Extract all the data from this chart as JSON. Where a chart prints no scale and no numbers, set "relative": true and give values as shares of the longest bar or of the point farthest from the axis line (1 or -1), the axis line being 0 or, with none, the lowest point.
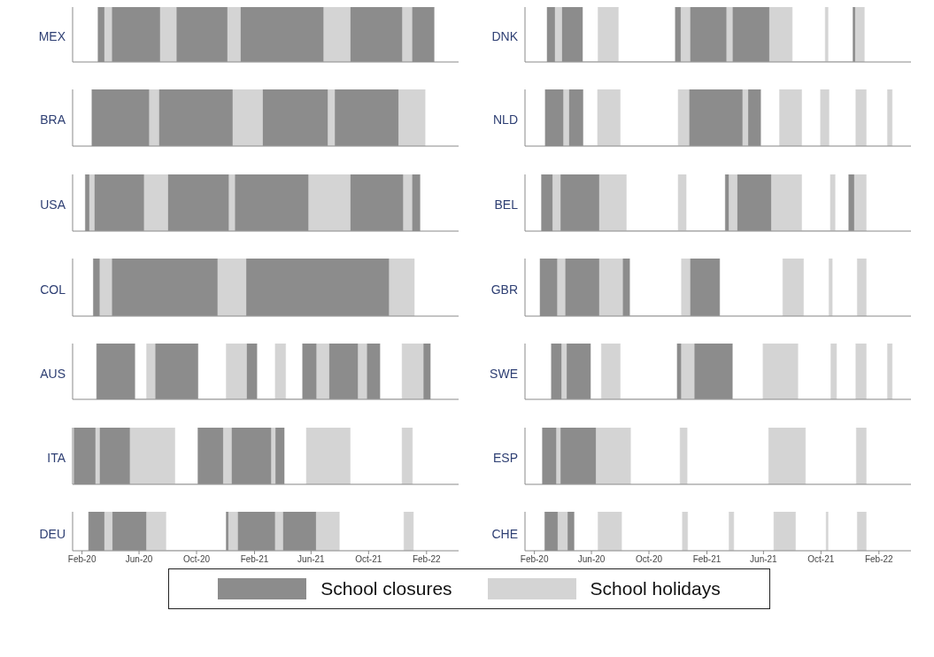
{
  "chart_data": [
    {
      "type": "area",
      "relative": true,
      "ylabel": "MEX",
      "tick_labels": false,
      "xlim": [
        "2020-01-12",
        "2022-04-10"
      ],
      "series": [
        {
          "color": "#8c8c8c",
          "x": [
            "2020-03-06",
            "2020-03-06",
            "2020-03-20",
            "2020-03-20",
            "2020-04-04",
            "2020-04-04",
            "2020-07-16",
            "2020-07-16",
            "2020-08-19",
            "2020-08-19",
            "2020-12-06",
            "2020-12-06",
            "2021-01-02",
            "2021-01-02",
            "2021-06-28",
            "2021-06-28",
            "2021-08-23",
            "2021-08-23",
            "2021-12-12",
            "2021-12-12",
            "2022-01-01",
            "2022-01-01",
            "2022-02-17",
            "2022-02-17"
          ],
          "values": [
            0,
            1,
            1,
            0,
            0,
            1,
            1,
            0,
            0,
            1,
            1,
            0,
            0,
            1,
            1,
            0,
            0,
            1,
            1,
            0,
            0,
            1,
            1,
            0
          ]
        },
        {
          "color": "#d4d4d4",
          "x": [
            "2020-03-20",
            "2020-03-20",
            "2020-04-04",
            "2020-04-04",
            "2020-07-16",
            "2020-07-16",
            "2020-08-19",
            "2020-08-19",
            "2020-12-06",
            "2020-12-06",
            "2021-01-02",
            "2021-01-02",
            "2021-06-28",
            "2021-06-28",
            "2021-08-23",
            "2021-08-23",
            "2021-12-12",
            "2021-12-12",
            "2022-01-01",
            "2022-01-01"
          ],
          "values": [
            0,
            1,
            1,
            0,
            0,
            1,
            1,
            0,
            0,
            1,
            1,
            0,
            0,
            1,
            1,
            0,
            0,
            1,
            1,
            0
          ]
        }
      ]
    },
    {
      "type": "area",
      "relative": true,
      "ylabel": "DNK",
      "tick_labels": false,
      "xlim": [
        "2020-01-12",
        "2022-04-10"
      ],
      "series": [
        {
          "color": "#8c8c8c",
          "x": [
            "2020-02-28",
            "2020-02-28",
            "2020-03-16",
            "2020-03-16",
            "2020-03-30",
            "2020-03-30",
            "2020-05-13",
            "2020-05-13",
            "2020-11-26",
            "2020-11-26",
            "2020-12-08",
            "2020-12-08",
            "2020-12-27",
            "2020-12-27",
            "2021-03-15",
            "2021-03-15",
            "2021-03-27",
            "2021-03-27",
            "2021-06-14",
            "2021-06-14",
            "2021-12-08",
            "2021-12-08",
            "2021-12-13",
            "2021-12-13"
          ],
          "values": [
            0,
            1,
            1,
            0,
            0,
            1,
            1,
            0,
            0,
            1,
            1,
            0,
            0,
            1,
            1,
            0,
            0,
            1,
            1,
            0,
            0,
            1,
            1,
            0
          ]
        },
        {
          "color": "#d4d4d4",
          "x": [
            "2020-03-16",
            "2020-03-16",
            "2020-03-30",
            "2020-03-30",
            "2020-06-15",
            "2020-06-15",
            "2020-07-28",
            "2020-07-28",
            "2020-12-08",
            "2020-12-08",
            "2020-12-27",
            "2020-12-27",
            "2021-03-15",
            "2021-03-15",
            "2021-03-27",
            "2021-03-27",
            "2021-06-14",
            "2021-06-14",
            "2021-08-01",
            "2021-08-01",
            "2021-10-10",
            "2021-10-10",
            "2021-10-16",
            "2021-10-16",
            "2021-12-13",
            "2021-12-13",
            "2022-01-01",
            "2022-01-01"
          ],
          "values": [
            0,
            1,
            1,
            0,
            0,
            1,
            1,
            0,
            0,
            1,
            1,
            0,
            0,
            1,
            1,
            0,
            0,
            1,
            1,
            0,
            0,
            1,
            1,
            0,
            0,
            1,
            1,
            0
          ]
        }
      ]
    },
    {
      "type": "area",
      "relative": true,
      "ylabel": "BRA",
      "tick_labels": false,
      "xlim": [
        "2020-01-12",
        "2022-04-10"
      ],
      "series": [
        {
          "color": "#8c8c8c",
          "x": [
            "2020-02-22",
            "2020-02-22",
            "2020-06-23",
            "2020-06-23",
            "2020-07-13",
            "2020-07-13",
            "2020-12-17",
            "2020-12-17",
            "2021-02-18",
            "2021-02-18",
            "2021-07-07",
            "2021-07-07",
            "2021-07-21",
            "2021-07-21",
            "2021-12-04",
            "2021-12-04"
          ],
          "values": [
            0,
            1,
            1,
            0,
            0,
            1,
            1,
            0,
            0,
            1,
            1,
            0,
            0,
            1,
            1,
            0
          ]
        },
        {
          "color": "#d4d4d4",
          "x": [
            "2020-06-23",
            "2020-06-23",
            "2020-07-13",
            "2020-07-13",
            "2020-12-17",
            "2020-12-17",
            "2021-02-18",
            "2021-02-18",
            "2021-07-07",
            "2021-07-07",
            "2021-07-21",
            "2021-07-21",
            "2021-12-04",
            "2021-12-04",
            "2022-01-29",
            "2022-01-29"
          ],
          "values": [
            0,
            1,
            1,
            0,
            0,
            1,
            1,
            0,
            0,
            1,
            1,
            0,
            0,
            1,
            1,
            0
          ]
        }
      ]
    },
    {
      "type": "area",
      "relative": true,
      "ylabel": "NLD",
      "tick_labels": false,
      "xlim": [
        "2020-01-12",
        "2022-04-10"
      ],
      "series": [
        {
          "color": "#8c8c8c",
          "x": [
            "2020-02-24",
            "2020-02-24",
            "2020-04-03",
            "2020-04-03",
            "2020-04-14",
            "2020-04-14",
            "2020-05-14",
            "2020-05-14",
            "2020-12-25",
            "2020-12-25",
            "2021-04-18",
            "2021-04-18",
            "2021-04-29",
            "2021-04-29",
            "2021-05-26",
            "2021-05-26"
          ],
          "values": [
            0,
            1,
            1,
            0,
            0,
            1,
            1,
            0,
            0,
            1,
            1,
            0,
            0,
            1,
            1,
            0
          ]
        },
        {
          "color": "#d4d4d4",
          "x": [
            "2020-04-03",
            "2020-04-03",
            "2020-04-14",
            "2020-04-14",
            "2020-06-14",
            "2020-06-14",
            "2020-08-01",
            "2020-08-01",
            "2020-12-02",
            "2020-12-02",
            "2020-12-25",
            "2020-12-25",
            "2021-04-18",
            "2021-04-18",
            "2021-04-29",
            "2021-04-29",
            "2021-07-05",
            "2021-07-05",
            "2021-08-21",
            "2021-08-21",
            "2021-09-30",
            "2021-09-30",
            "2021-10-18",
            "2021-10-18",
            "2021-12-14",
            "2021-12-14",
            "2022-01-05",
            "2022-01-05",
            "2022-02-19",
            "2022-02-19",
            "2022-03-01",
            "2022-03-01"
          ],
          "values": [
            0,
            1,
            1,
            0,
            0,
            1,
            1,
            0,
            0,
            1,
            1,
            0,
            0,
            1,
            1,
            0,
            0,
            1,
            1,
            0,
            0,
            1,
            1,
            0,
            0,
            1,
            1,
            0,
            0,
            1,
            1,
            0
          ]
        }
      ]
    },
    {
      "type": "area",
      "relative": true,
      "ylabel": "USA",
      "tick_labels": false,
      "xlim": [
        "2020-01-12",
        "2022-04-10"
      ],
      "series": [
        {
          "color": "#8c8c8c",
          "x": [
            "2020-02-08",
            "2020-02-08",
            "2020-02-17",
            "2020-02-17",
            "2020-02-27",
            "2020-02-27",
            "2020-06-12",
            "2020-06-12",
            "2020-08-01",
            "2020-08-01",
            "2020-12-09",
            "2020-12-09",
            "2020-12-21",
            "2020-12-21",
            "2021-05-27",
            "2021-05-27",
            "2021-08-23",
            "2021-08-23",
            "2021-12-14",
            "2021-12-14",
            "2022-01-01",
            "2022-01-01",
            "2022-01-18",
            "2022-01-18"
          ],
          "values": [
            0,
            1,
            1,
            0,
            0,
            1,
            1,
            0,
            0,
            1,
            1,
            0,
            0,
            1,
            1,
            0,
            0,
            1,
            1,
            0,
            0,
            1,
            1,
            0
          ]
        },
        {
          "color": "#d4d4d4",
          "x": [
            "2020-02-17",
            "2020-02-17",
            "2020-02-27",
            "2020-02-27",
            "2020-06-12",
            "2020-06-12",
            "2020-08-01",
            "2020-08-01",
            "2020-12-09",
            "2020-12-09",
            "2020-12-21",
            "2020-12-21",
            "2021-05-27",
            "2021-05-27",
            "2021-08-23",
            "2021-08-23",
            "2021-12-14",
            "2021-12-14",
            "2022-01-01",
            "2022-01-01"
          ],
          "values": [
            0,
            1,
            1,
            0,
            0,
            1,
            1,
            0,
            0,
            1,
            1,
            0,
            0,
            1,
            1,
            0,
            0,
            1,
            1,
            0
          ]
        }
      ]
    },
    {
      "type": "area",
      "relative": true,
      "ylabel": "BEL",
      "tick_labels": false,
      "xlim": [
        "2020-01-12",
        "2022-04-10"
      ],
      "series": [
        {
          "color": "#8c8c8c",
          "x": [
            "2020-02-16",
            "2020-02-16",
            "2020-03-11",
            "2020-03-11",
            "2020-03-27",
            "2020-03-27",
            "2020-06-18",
            "2020-06-18",
            "2021-03-12",
            "2021-03-12",
            "2021-03-20",
            "2021-03-20",
            "2021-04-06",
            "2021-04-06",
            "2021-06-18",
            "2021-06-18",
            "2021-11-29",
            "2021-11-29",
            "2021-12-11",
            "2021-12-11"
          ],
          "values": [
            0,
            1,
            1,
            0,
            0,
            1,
            1,
            0,
            0,
            1,
            1,
            0,
            0,
            1,
            1,
            0,
            0,
            1,
            1,
            0
          ]
        },
        {
          "color": "#d4d4d4",
          "x": [
            "2020-03-11",
            "2020-03-11",
            "2020-03-27",
            "2020-03-27",
            "2020-06-18",
            "2020-06-18",
            "2020-08-14",
            "2020-08-14",
            "2020-12-02",
            "2020-12-02",
            "2020-12-19",
            "2020-12-19",
            "2021-03-20",
            "2021-03-20",
            "2021-04-06",
            "2021-04-06",
            "2021-06-18",
            "2021-06-18",
            "2021-08-21",
            "2021-08-21",
            "2021-10-21",
            "2021-10-21",
            "2021-10-31",
            "2021-10-31",
            "2021-12-11",
            "2021-12-11",
            "2022-01-05",
            "2022-01-05"
          ],
          "values": [
            0,
            1,
            1,
            0,
            0,
            1,
            1,
            0,
            0,
            1,
            1,
            0,
            0,
            1,
            1,
            0,
            0,
            1,
            1,
            0,
            0,
            1,
            1,
            0,
            0,
            1,
            1,
            0
          ]
        }
      ]
    },
    {
      "type": "area",
      "relative": true,
      "ylabel": "COL",
      "tick_labels": false,
      "xlim": [
        "2020-01-12",
        "2022-04-10"
      ],
      "series": [
        {
          "color": "#8c8c8c",
          "x": [
            "2020-02-25",
            "2020-02-25",
            "2020-03-10",
            "2020-03-10",
            "2020-04-04",
            "2020-04-04",
            "2020-11-15",
            "2020-11-15",
            "2021-01-14",
            "2021-01-14",
            "2021-11-14",
            "2021-11-14"
          ],
          "values": [
            0,
            1,
            1,
            0,
            0,
            1,
            1,
            0,
            0,
            1,
            1,
            0
          ]
        },
        {
          "color": "#d4d4d4",
          "x": [
            "2020-03-10",
            "2020-03-10",
            "2020-04-04",
            "2020-04-04",
            "2020-11-15",
            "2020-11-15",
            "2021-01-14",
            "2021-01-14",
            "2021-11-14",
            "2021-11-14",
            "2022-01-06",
            "2022-01-06"
          ],
          "values": [
            0,
            1,
            1,
            0,
            0,
            1,
            1,
            0,
            0,
            1,
            1,
            0
          ]
        }
      ]
    },
    {
      "type": "area",
      "relative": true,
      "ylabel": "GBR",
      "tick_labels": false,
      "xlim": [
        "2020-01-12",
        "2022-04-10"
      ],
      "series": [
        {
          "color": "#8c8c8c",
          "x": [
            "2020-02-13",
            "2020-02-13",
            "2020-03-21",
            "2020-03-21",
            "2020-04-06",
            "2020-04-06",
            "2020-06-18",
            "2020-06-18",
            "2020-08-06",
            "2020-08-06",
            "2020-08-21",
            "2020-08-21",
            "2020-12-27",
            "2020-12-27",
            "2021-02-28",
            "2021-02-28"
          ],
          "values": [
            0,
            1,
            1,
            0,
            0,
            1,
            1,
            0,
            0,
            1,
            1,
            0,
            0,
            1,
            1,
            0
          ]
        },
        {
          "color": "#d4d4d4",
          "x": [
            "2020-03-21",
            "2020-03-21",
            "2020-04-06",
            "2020-04-06",
            "2020-06-18",
            "2020-06-18",
            "2020-08-06",
            "2020-08-06",
            "2020-12-09",
            "2020-12-09",
            "2020-12-27",
            "2020-12-27",
            "2021-07-12",
            "2021-07-12",
            "2021-08-25",
            "2021-08-25",
            "2021-10-18",
            "2021-10-18",
            "2021-10-25",
            "2021-10-25",
            "2021-12-17",
            "2021-12-17",
            "2022-01-05",
            "2022-01-05"
          ],
          "values": [
            0,
            1,
            1,
            0,
            0,
            1,
            1,
            0,
            0,
            1,
            1,
            0,
            0,
            1,
            1,
            0,
            0,
            1,
            1,
            0,
            0,
            1,
            1,
            0
          ]
        }
      ]
    },
    {
      "type": "area",
      "relative": true,
      "ylabel": "AUS",
      "tick_labels": false,
      "xlim": [
        "2020-01-12",
        "2022-04-10"
      ],
      "series": [
        {
          "color": "#8c8c8c",
          "x": [
            "2020-03-03",
            "2020-03-03",
            "2020-05-23",
            "2020-05-23",
            "2020-07-05",
            "2020-07-05",
            "2020-10-04",
            "2020-10-04",
            "2021-01-15",
            "2021-01-15",
            "2021-02-06",
            "2021-02-06",
            "2021-05-14",
            "2021-05-14",
            "2021-06-13",
            "2021-06-13",
            "2021-07-09",
            "2021-07-09",
            "2021-09-09",
            "2021-09-09",
            "2021-09-27",
            "2021-09-27",
            "2021-10-25",
            "2021-10-25",
            "2022-01-25",
            "2022-01-25",
            "2022-02-09",
            "2022-02-09"
          ],
          "values": [
            0,
            1,
            1,
            0,
            0,
            1,
            1,
            0,
            0,
            1,
            1,
            0,
            0,
            1,
            1,
            0,
            0,
            1,
            1,
            0,
            0,
            1,
            1,
            0,
            0,
            1,
            1,
            0
          ]
        },
        {
          "color": "#d4d4d4",
          "x": [
            "2020-06-17",
            "2020-06-17",
            "2020-07-05",
            "2020-07-05",
            "2020-12-03",
            "2020-12-03",
            "2021-01-15",
            "2021-01-15",
            "2021-03-17",
            "2021-03-17",
            "2021-04-08",
            "2021-04-08",
            "2021-06-13",
            "2021-06-13",
            "2021-07-09",
            "2021-07-09",
            "2021-09-09",
            "2021-09-09",
            "2021-09-27",
            "2021-09-27",
            "2021-12-11",
            "2021-12-11",
            "2022-01-25",
            "2022-01-25"
          ],
          "values": [
            0,
            1,
            1,
            0,
            0,
            1,
            1,
            0,
            0,
            1,
            1,
            0,
            0,
            1,
            1,
            0,
            0,
            1,
            1,
            0,
            0,
            1,
            1,
            0
          ]
        }
      ]
    },
    {
      "type": "area",
      "relative": true,
      "ylabel": "SWE",
      "tick_labels": false,
      "xlim": [
        "2020-01-12",
        "2022-04-10"
      ],
      "series": [
        {
          "color": "#8c8c8c",
          "x": [
            "2020-03-08",
            "2020-03-08",
            "2020-03-30",
            "2020-03-30",
            "2020-04-09",
            "2020-04-09",
            "2020-05-30",
            "2020-05-30",
            "2020-11-30",
            "2020-11-30",
            "2020-12-09",
            "2020-12-09",
            "2021-01-05",
            "2021-01-05",
            "2021-03-27",
            "2021-03-27"
          ],
          "values": [
            0,
            1,
            1,
            0,
            0,
            1,
            1,
            0,
            0,
            1,
            1,
            0,
            0,
            1,
            1,
            0
          ]
        },
        {
          "color": "#d4d4d4",
          "x": [
            "2020-03-30",
            "2020-03-30",
            "2020-04-09",
            "2020-04-09",
            "2020-06-22",
            "2020-06-22",
            "2020-08-01",
            "2020-08-01",
            "2020-12-09",
            "2020-12-09",
            "2021-01-05",
            "2021-01-05",
            "2021-05-31",
            "2021-05-31",
            "2021-08-13",
            "2021-08-13",
            "2021-10-22",
            "2021-10-22",
            "2021-11-03",
            "2021-11-03",
            "2021-12-14",
            "2021-12-14",
            "2022-01-05",
            "2022-01-05",
            "2022-02-19",
            "2022-02-19",
            "2022-03-01",
            "2022-03-01"
          ],
          "values": [
            0,
            1,
            1,
            0,
            0,
            1,
            1,
            0,
            0,
            1,
            1,
            0,
            0,
            1,
            1,
            0,
            0,
            1,
            1,
            0,
            0,
            1,
            1,
            0,
            0,
            1,
            1,
            0
          ]
        }
      ]
    },
    {
      "type": "area",
      "relative": true,
      "ylabel": "ITA",
      "tick_labels": false,
      "xlim": [
        "2020-01-12",
        "2022-04-10"
      ],
      "series": [
        {
          "color": "#8c8c8c",
          "x": [
            "2020-01-15",
            "2020-01-15",
            "2020-03-01",
            "2020-03-01",
            "2020-03-09",
            "2020-03-09",
            "2020-05-13",
            "2020-05-13",
            "2020-10-04",
            "2020-10-04",
            "2020-11-27",
            "2020-11-27",
            "2020-12-14",
            "2020-12-14",
            "2021-03-09",
            "2021-03-09",
            "2021-03-17",
            "2021-03-17",
            "2021-04-05",
            "2021-04-05"
          ],
          "values": [
            0,
            1,
            1,
            0,
            0,
            1,
            1,
            0,
            0,
            1,
            1,
            0,
            0,
            1,
            1,
            0,
            0,
            1,
            1,
            0
          ]
        },
        {
          "color": "#d4d4d4",
          "x": [
            "2020-03-01",
            "2020-03-01",
            "2020-03-09",
            "2020-03-09",
            "2020-05-13",
            "2020-05-13",
            "2020-08-16",
            "2020-08-16",
            "2020-11-27",
            "2020-11-27",
            "2020-12-14",
            "2020-12-14",
            "2021-03-09",
            "2021-03-09",
            "2021-03-17",
            "2021-03-17",
            "2021-05-22",
            "2021-05-22",
            "2021-08-23",
            "2021-08-23",
            "2021-12-11",
            "2021-12-11",
            "2022-01-02",
            "2022-01-02"
          ],
          "values": [
            0,
            1,
            1,
            0,
            0,
            1,
            1,
            0,
            0,
            1,
            1,
            0,
            0,
            1,
            1,
            0,
            0,
            1,
            1,
            0,
            0,
            1,
            1,
            0
          ]
        }
      ]
    },
    {
      "type": "area",
      "relative": true,
      "ylabel": "ESP",
      "tick_labels": false,
      "xlim": [
        "2020-01-12",
        "2022-04-10"
      ],
      "series": [
        {
          "color": "#8c8c8c",
          "x": [
            "2020-02-18",
            "2020-02-18",
            "2020-03-19",
            "2020-03-19",
            "2020-03-27",
            "2020-03-27",
            "2020-06-11",
            "2020-06-11"
          ],
          "values": [
            0,
            1,
            1,
            0,
            0,
            1,
            1,
            0
          ]
        },
        {
          "color": "#d4d4d4",
          "x": [
            "2020-03-19",
            "2020-03-19",
            "2020-03-27",
            "2020-03-27",
            "2020-06-11",
            "2020-06-11",
            "2020-08-23",
            "2020-08-23",
            "2020-12-06",
            "2020-12-06",
            "2020-12-21",
            "2020-12-21",
            "2021-06-12",
            "2021-06-12",
            "2021-08-29",
            "2021-08-29",
            "2021-12-15",
            "2021-12-15",
            "2022-01-05",
            "2022-01-05"
          ],
          "values": [
            0,
            1,
            1,
            0,
            0,
            1,
            1,
            0,
            0,
            1,
            1,
            0,
            0,
            1,
            1,
            0,
            0,
            1,
            1,
            0
          ]
        }
      ]
    },
    {
      "type": "area",
      "relative": true,
      "ylabel": "DEU",
      "xlim": [
        "2020-01-12",
        "2022-04-10"
      ],
      "xticks": [
        {
          "value": "2020-02-01",
          "label": "Feb-20"
        },
        {
          "value": "2020-06-01",
          "label": "Jun-20"
        },
        {
          "value": "2020-10-01",
          "label": "Oct-20"
        },
        {
          "value": "2021-02-01",
          "label": "Feb-21"
        },
        {
          "value": "2021-06-01",
          "label": "Jun-21"
        },
        {
          "value": "2021-10-01",
          "label": "Oct-21"
        },
        {
          "value": "2022-02-01",
          "label": "Feb-22"
        }
      ],
      "series": [
        {
          "color": "#8c8c8c",
          "x": [
            "2020-02-15",
            "2020-02-15",
            "2020-03-20",
            "2020-03-20",
            "2020-04-05",
            "2020-04-05",
            "2020-06-17",
            "2020-06-17",
            "2020-12-03",
            "2020-12-03",
            "2020-12-08",
            "2020-12-08",
            "2020-12-27",
            "2020-12-27",
            "2021-03-17",
            "2021-03-17",
            "2021-04-02",
            "2021-04-02",
            "2021-06-12",
            "2021-06-12"
          ],
          "values": [
            0,
            1,
            1,
            0,
            0,
            1,
            1,
            0,
            0,
            1,
            1,
            0,
            0,
            1,
            1,
            0,
            0,
            1,
            1,
            0
          ]
        },
        {
          "color": "#d4d4d4",
          "x": [
            "2020-03-20",
            "2020-03-20",
            "2020-04-05",
            "2020-04-05",
            "2020-06-17",
            "2020-06-17",
            "2020-07-28",
            "2020-07-28",
            "2020-12-08",
            "2020-12-08",
            "2020-12-27",
            "2020-12-27",
            "2021-03-17",
            "2021-03-17",
            "2021-04-02",
            "2021-04-02",
            "2021-06-12",
            "2021-06-12",
            "2021-07-31",
            "2021-07-31",
            "2021-12-15",
            "2021-12-15",
            "2022-01-04",
            "2022-01-04"
          ],
          "values": [
            0,
            1,
            1,
            0,
            0,
            1,
            1,
            0,
            0,
            1,
            1,
            0,
            0,
            1,
            1,
            0,
            0,
            1,
            1,
            0,
            0,
            1,
            1,
            0
          ]
        }
      ]
    },
    {
      "type": "area",
      "relative": true,
      "ylabel": "CHE",
      "legend": "bottom",
      "xlim": [
        "2020-01-12",
        "2022-04-10"
      ],
      "xticks": [
        {
          "value": "2020-02-01",
          "label": "Feb-20"
        },
        {
          "value": "2020-06-01",
          "label": "Jun-20"
        },
        {
          "value": "2020-10-01",
          "label": "Oct-20"
        },
        {
          "value": "2021-02-01",
          "label": "Feb-21"
        },
        {
          "value": "2021-06-01",
          "label": "Jun-21"
        },
        {
          "value": "2021-10-01",
          "label": "Oct-21"
        },
        {
          "value": "2022-02-01",
          "label": "Feb-22"
        }
      ],
      "series": [
        {
          "name": "School closures",
          "color": "#8c8c8c",
          "x": [
            "2020-02-23",
            "2020-02-23",
            "2020-03-22",
            "2020-03-22",
            "2020-04-11",
            "2020-04-11",
            "2020-04-25",
            "2020-04-25"
          ],
          "values": [
            0,
            1,
            1,
            0,
            0,
            1,
            1,
            0
          ]
        },
        {
          "name": "School holidays",
          "color": "#d4d4d4",
          "x": [
            "2020-03-22",
            "2020-03-22",
            "2020-04-11",
            "2020-04-11",
            "2020-06-15",
            "2020-06-15",
            "2020-08-04",
            "2020-08-04",
            "2020-12-11",
            "2020-12-11",
            "2020-12-22",
            "2020-12-22",
            "2021-03-20",
            "2021-03-20",
            "2021-03-30",
            "2021-03-30",
            "2021-06-23",
            "2021-06-23",
            "2021-08-08",
            "2021-08-08",
            "2021-10-12",
            "2021-10-12",
            "2021-10-16",
            "2021-10-16",
            "2021-12-17",
            "2021-12-17",
            "2022-01-05",
            "2022-01-05"
          ],
          "values": [
            0,
            1,
            1,
            0,
            0,
            1,
            1,
            0,
            0,
            1,
            1,
            0,
            0,
            1,
            1,
            0,
            0,
            1,
            1,
            0,
            0,
            1,
            1,
            0,
            0,
            1,
            1,
            0
          ]
        }
      ]
    }
  ]
}
